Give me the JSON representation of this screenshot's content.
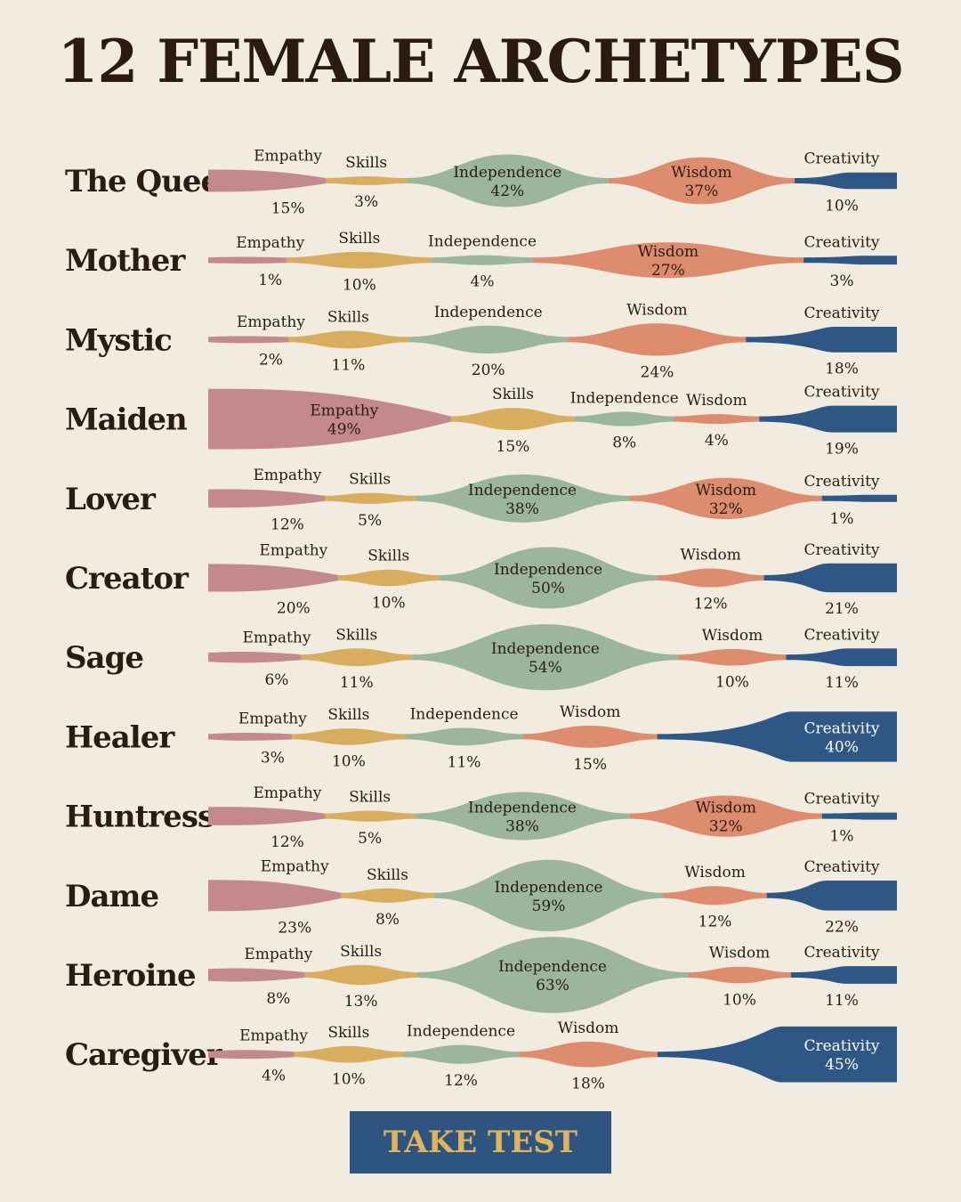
{
  "title": "12 FEMALE ARCHETYPES",
  "button_label": "TAKE TEST",
  "colors": {
    "Empathy": "#c4898c",
    "Skills": "#d9ad5e",
    "Independence": "#9bb69a",
    "Wisdom": "#dd8c6e",
    "Creativity": "#2f5785",
    "background": "#f2ebdf"
  },
  "chart_data": {
    "type": "area",
    "title": "12 FEMALE ARCHETYPES",
    "series_names": [
      "Empathy",
      "Skills",
      "Independence",
      "Wisdom",
      "Creativity"
    ],
    "rows": [
      {
        "archetype": "The Queen",
        "values": [
          15,
          3,
          42,
          37,
          10
        ]
      },
      {
        "archetype": "Mother",
        "values": [
          1,
          10,
          4,
          27,
          3
        ]
      },
      {
        "archetype": "Mystic",
        "values": [
          2,
          11,
          20,
          24,
          18
        ]
      },
      {
        "archetype": "Maiden",
        "values": [
          49,
          15,
          8,
          4,
          19
        ]
      },
      {
        "archetype": "Lover",
        "values": [
          12,
          5,
          38,
          32,
          1
        ]
      },
      {
        "archetype": "Creator",
        "values": [
          20,
          10,
          50,
          12,
          21
        ]
      },
      {
        "archetype": "Sage",
        "values": [
          6,
          11,
          54,
          10,
          11
        ]
      },
      {
        "archetype": "Healer",
        "values": [
          3,
          10,
          11,
          15,
          40
        ]
      },
      {
        "archetype": "Huntress",
        "values": [
          12,
          5,
          38,
          32,
          1
        ]
      },
      {
        "archetype": "Dame",
        "values": [
          23,
          8,
          59,
          12,
          22
        ]
      },
      {
        "archetype": "Heroine",
        "values": [
          8,
          13,
          63,
          10,
          11
        ]
      },
      {
        "archetype": "Caregiver",
        "values": [
          4,
          10,
          12,
          18,
          45
        ]
      }
    ],
    "unit": "%"
  }
}
